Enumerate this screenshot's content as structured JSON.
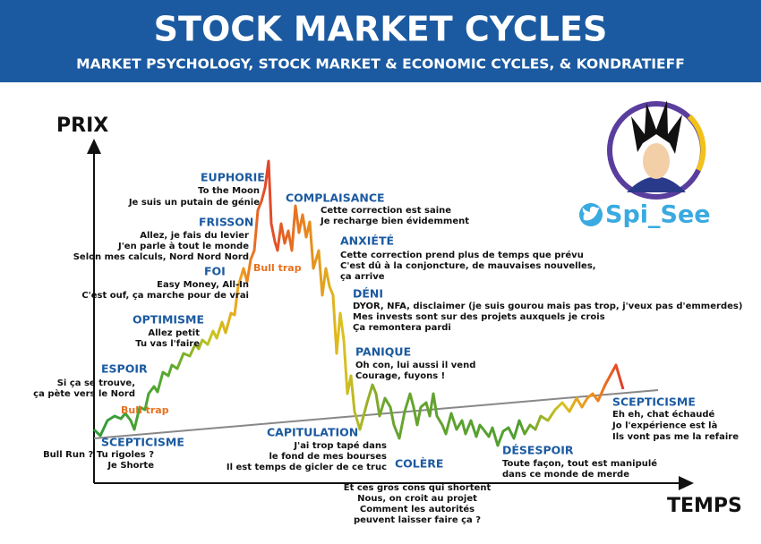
{
  "header": {
    "title": "STOCK MARKET CYCLES",
    "subtitle": "MARKET PSYCHOLOGY, STOCK MARKET & ECONOMIC CYCLES, & KONDRATIEFF"
  },
  "axes": {
    "y_label": "PRIX",
    "x_label": "TEMPS"
  },
  "handle": "Spi_See",
  "annotations": [
    "Bull trap",
    "Bull trap"
  ],
  "phases": [
    {
      "title": "SCEPTICISME",
      "lines": [
        "Bull Run ? Tu rigoles ?",
        "Je Shorte"
      ]
    },
    {
      "title": "ESPOIR",
      "lines": [
        "Si ça se trouve,",
        "ça pète vers le Nord"
      ]
    },
    {
      "title": "OPTIMISME",
      "lines": [
        "Allez petit",
        "Tu vas l'faire"
      ]
    },
    {
      "title": "FOI",
      "lines": [
        "Easy Money, All-In",
        "C'est ouf, ça marche pour de vrai"
      ]
    },
    {
      "title": "FRISSON",
      "lines": [
        "Allez, je fais du levier",
        "J'en parle à tout le monde",
        "Selon mes calculs, Nord Nord Nord"
      ]
    },
    {
      "title": "EUPHORIE",
      "lines": [
        "To the Moon",
        "Je suis un putain de génie"
      ]
    },
    {
      "title": "COMPLAISANCE",
      "lines": [
        "Cette correction est saine",
        "Je recharge bien évidemment"
      ]
    },
    {
      "title": "ANXIÉTÉ",
      "lines": [
        "Cette correction prend plus de temps que prévu",
        "C'est dû à la conjoncture, de mauvaises nouvelles,",
        "ça arrive"
      ]
    },
    {
      "title": "DÉNI",
      "lines": [
        "DYOR, NFA, disclaimer (je suis gourou mais pas trop, j'veux pas d'emmerdes)",
        "Mes invests sont sur des projets auxquels je crois",
        "Ça remontera pardi"
      ]
    },
    {
      "title": "PANIQUE",
      "lines": [
        "Oh con, lui aussi il vend",
        "Courage, fuyons !"
      ]
    },
    {
      "title": "CAPITULATION",
      "lines": [
        "J'ai trop tapé dans",
        "le fond de mes bourses",
        "Il est temps de gicler de ce truc"
      ]
    },
    {
      "title": "COLÈRE",
      "lines": [
        "Et ces gros cons qui shortent",
        "Nous, on croit au projet",
        "Comment les autorités",
        "peuvent laisser faire ça ?"
      ]
    },
    {
      "title": "DÉSESPOIR",
      "lines": [
        "Toute façon, tout est manipulé",
        "dans ce monde de merde"
      ]
    },
    {
      "title": "SCEPTICISME",
      "lines": [
        "Eh eh, chat échaudé",
        "Jo l'expérience est là",
        "Ils vont pas me la refaire"
      ]
    }
  ]
}
